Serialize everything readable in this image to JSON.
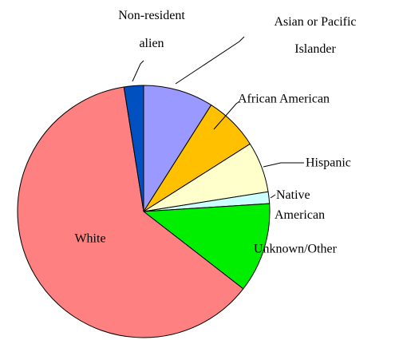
{
  "chart_data": {
    "type": "pie",
    "categories": [
      "Asian or Pacific Islander",
      "African American",
      "Hispanic",
      "Native American",
      "Unknown/Other",
      "White",
      "Non-resident alien"
    ],
    "values": [
      9,
      7,
      6.5,
      1.5,
      11.5,
      62,
      2.5
    ],
    "colors": [
      "#9999ff",
      "#ffc000",
      "#ffffcc",
      "#ccffff",
      "#00ee00",
      "#ff8080",
      "#0050c0"
    ]
  }
}
